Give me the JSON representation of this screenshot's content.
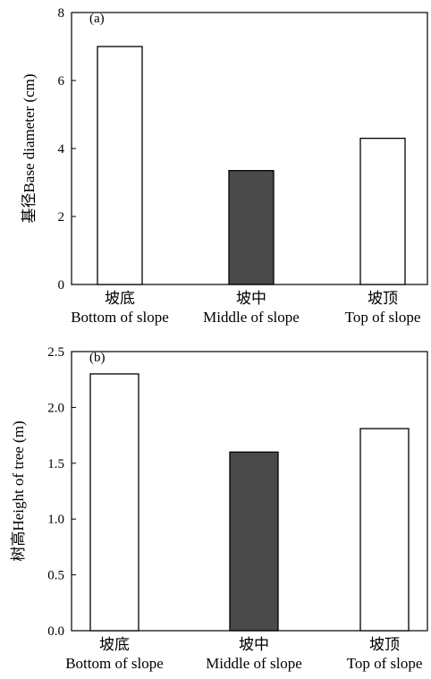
{
  "chart_data": [
    {
      "type": "bar",
      "panel_label": "(a)",
      "categories": [
        "坡底",
        "坡中",
        "坡顶"
      ],
      "categories_en": [
        "Bottom of slope",
        "Middle of slope",
        "Top of slope"
      ],
      "values": [
        7.0,
        3.35,
        4.3
      ],
      "bar_colors": [
        "#ffffff",
        "#4a4a4a",
        "#ffffff"
      ],
      "ylabel": "基径Base diameter (cm)",
      "ylim": [
        0,
        8
      ],
      "yticks": [
        0,
        2,
        4,
        6,
        8
      ],
      "ytick_labels": [
        "0",
        "2",
        "4",
        "6",
        "8"
      ],
      "grid": false
    },
    {
      "type": "bar",
      "panel_label": "(b)",
      "categories": [
        "坡底",
        "坡中",
        "坡顶"
      ],
      "categories_en": [
        "Bottom of slope",
        "Middle of slope",
        "Top of slope"
      ],
      "values": [
        2.3,
        1.6,
        1.81
      ],
      "bar_colors": [
        "#ffffff",
        "#4a4a4a",
        "#ffffff"
      ],
      "ylabel": "树高Height of tree (m)",
      "ylim": [
        0,
        2.5
      ],
      "yticks": [
        0,
        0.5,
        1.0,
        1.5,
        2.0,
        2.5
      ],
      "ytick_labels": [
        "0.0",
        "0.5",
        "1.0",
        "1.5",
        "2.0",
        "2.5"
      ],
      "grid": false
    }
  ]
}
